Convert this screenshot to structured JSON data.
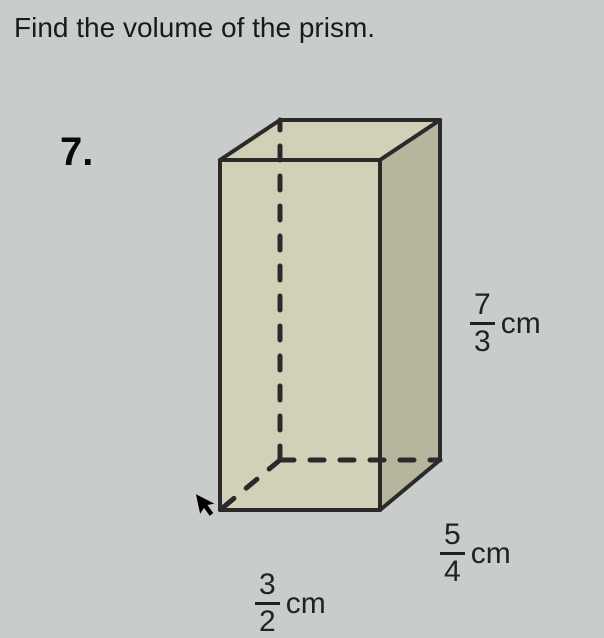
{
  "instruction": "Find the volume of the prism.",
  "problem_number": "7.",
  "dimensions": {
    "height": {
      "numerator": "7",
      "denominator": "3",
      "unit": "cm"
    },
    "depth": {
      "numerator": "5",
      "denominator": "4",
      "unit": "cm"
    },
    "width": {
      "numerator": "3",
      "denominator": "2",
      "unit": "cm"
    }
  },
  "prism": {
    "type": "rectangular-prism-3d",
    "fill_color": "#d3d0b8",
    "fill_color_side": "#b8b59d",
    "stroke_color": "#2a2a2a",
    "stroke_width": 4,
    "dash_pattern": "14,16",
    "dash_width": 5,
    "background": "#c8cccb",
    "points": {
      "front_tl": [
        60,
        50
      ],
      "front_tr": [
        220,
        50
      ],
      "front_br": [
        220,
        400
      ],
      "front_bl": [
        60,
        400
      ],
      "back_tl": [
        120,
        10
      ],
      "back_tr": [
        280,
        10
      ],
      "back_br": [
        280,
        350
      ],
      "back_bl": [
        120,
        350
      ]
    }
  }
}
